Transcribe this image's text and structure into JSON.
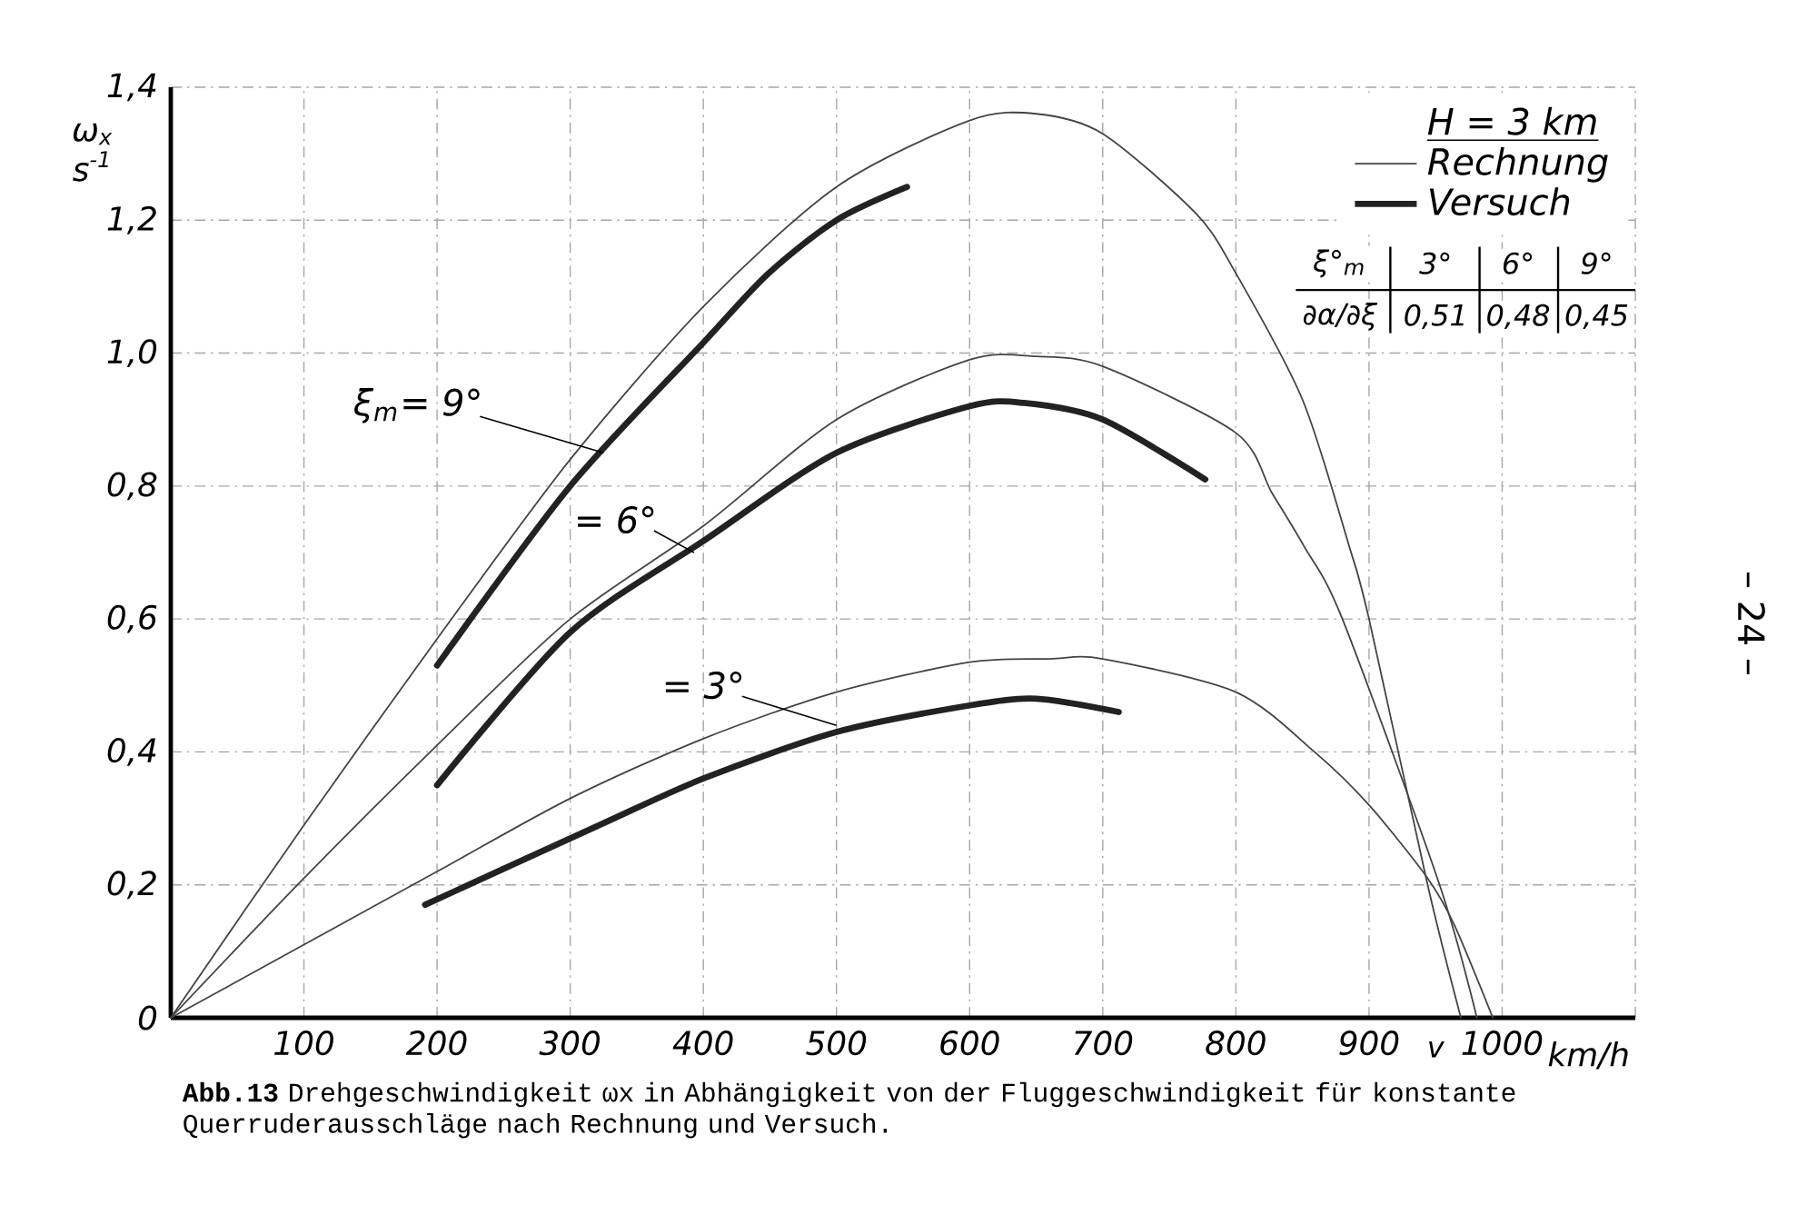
{
  "chart_data": {
    "type": "line",
    "title": "**Abb.13** Drehgeschwindigkeit ωx in Abhängigkeit von der Fluggeschwindigkeit für konstante Querruderausschläge nach Rechnung und Versuch.",
    "xlabel": "km/h",
    "ylabel": "ω$_{x}$ s$^{-1}$",
    "legend_title": "H = 3 km",
    "xlim": [
      0,
      1100
    ],
    "ylim": [
      0,
      1.4
    ],
    "xticks": [
      {
        "value": 0,
        "label": null
      },
      100,
      200,
      300,
      400,
      500,
      600,
      700,
      800,
      900,
      1000,
      {
        "value": 1100,
        "label": null
      }
    ],
    "yticks": [
      {
        "value": 0,
        "label": "0"
      },
      {
        "value": 0.2,
        "label": "0,2"
      },
      {
        "value": 0.4,
        "label": "0,4"
      },
      {
        "value": 0.6,
        "label": "0,6"
      },
      {
        "value": 0.8,
        "label": "0,8"
      },
      {
        "value": 1.0,
        "label": "1,0"
      },
      {
        "value": 1.2,
        "label": "1,2"
      },
      {
        "value": 1.4,
        "label": "1,4"
      }
    ],
    "grid": true,
    "legend": "top right",
    "series": [
      {
        "name": "Rechnung",
        "color": "#444444",
        "x": [
          0,
          100,
          200,
          300,
          400,
          500,
          600,
          650,
          700,
          770,
          800,
          850,
          885,
          900,
          944,
          969
        ],
        "values": [
          0,
          0.29,
          0.57,
          0.84,
          1.07,
          1.25,
          1.35,
          1.36,
          1.33,
          1.21,
          1.12,
          0.93,
          0.71,
          0.6,
          0.2,
          0
        ]
      },
      {
        "color": "#444444",
        "x": [
          0,
          100,
          200,
          300,
          400,
          500,
          600,
          650,
          700,
          800,
          827,
          851,
          880,
          953,
          981
        ],
        "values": [
          0,
          0.21,
          0.41,
          0.6,
          0.74,
          0.9,
          0.99,
          0.995,
          0.98,
          0.88,
          0.79,
          0.71,
          0.6,
          0.2,
          0
        ]
      },
      {
        "color": "#444444",
        "x": [
          0,
          100,
          200,
          300,
          400,
          500,
          600,
          660,
          700,
          800,
          859,
          900,
          944,
          964,
          993
        ],
        "values": [
          0,
          0.11,
          0.22,
          0.33,
          0.42,
          0.49,
          0.535,
          0.54,
          0.54,
          0.49,
          0.4,
          0.32,
          0.21,
          0.14,
          0
        ]
      },
      {
        "name": "Versuch",
        "color": "#222222",
        "x": [
          200,
          300,
          402,
          449,
          500,
          553
        ],
        "values": [
          0.53,
          0.8,
          1.02,
          1.12,
          1.2,
          1.25
        ]
      },
      {
        "color": "#222222",
        "x": [
          200,
          300,
          402,
          500,
          600,
          641,
          700,
          777
        ],
        "values": [
          0.35,
          0.58,
          0.72,
          0.85,
          0.92,
          0.925,
          0.9,
          0.81
        ]
      },
      {
        "color": "#222222",
        "x": [
          191,
          322,
          400,
          500,
          600,
          650,
          712
        ],
        "values": [
          0.17,
          0.29,
          0.36,
          0.43,
          0.47,
          0.48,
          0.46
        ]
      }
    ],
    "annotations": [
      {
        "text": "ξ$_{m}$= 9°",
        "x": 325,
        "y": 0.85
      },
      {
        "text": "= 6°",
        "x": 393,
        "y": 0.7
      },
      {
        "text": "= 3°",
        "x": 500,
        "y": 0.44
      },
      "ξ°$_{m}$",
      "3°",
      "6°",
      "9°",
      "∂α/∂ξ",
      "0,51",
      "0,48",
      "0,45",
      "v",
      "– 24 –"
    ]
  }
}
